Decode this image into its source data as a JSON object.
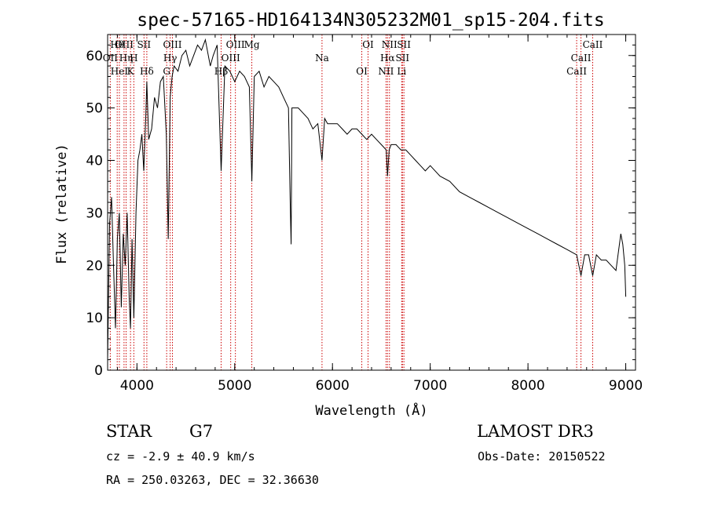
{
  "chart_data": {
    "type": "line",
    "title": "spec-57165-HD164134N305232M01_sp15-204.fits",
    "xlabel": "Wavelength (Å)",
    "ylabel": "Flux (relative)",
    "xlim": [
      3700,
      9100
    ],
    "ylim": [
      0,
      64
    ],
    "xticks": [
      4000,
      5000,
      6000,
      7000,
      8000,
      9000
    ],
    "yticks": [
      0,
      10,
      20,
      30,
      40,
      50,
      60
    ],
    "grid": false,
    "series": [
      {
        "name": "flux",
        "x": [
          3700,
          3720,
          3740,
          3760,
          3780,
          3800,
          3820,
          3840,
          3860,
          3880,
          3900,
          3920,
          3934,
          3950,
          3968,
          3990,
          4010,
          4030,
          4050,
          4070,
          4090,
          4101,
          4120,
          4150,
          4180,
          4210,
          4240,
          4270,
          4300,
          4320,
          4340,
          4360,
          4380,
          4420,
          4460,
          4500,
          4540,
          4580,
          4620,
          4660,
          4700,
          4750,
          4780,
          4820,
          4861,
          4900,
          4950,
          5000,
          5050,
          5100,
          5150,
          5175,
          5200,
          5250,
          5300,
          5350,
          5400,
          5450,
          5500,
          5550,
          5570,
          5577,
          5585,
          5600,
          5650,
          5700,
          5750,
          5800,
          5850,
          5893,
          5920,
          5950,
          6000,
          6050,
          6100,
          6150,
          6200,
          6250,
          6300,
          6350,
          6400,
          6450,
          6500,
          6550,
          6563,
          6580,
          6600,
          6650,
          6700,
          6750,
          6800,
          6850,
          6900,
          6950,
          7000,
          7100,
          7200,
          7300,
          7400,
          7500,
          7600,
          7700,
          7800,
          7900,
          8000,
          8100,
          8200,
          8300,
          8400,
          8498,
          8542,
          8580,
          8620,
          8662,
          8700,
          8750,
          8800,
          8850,
          8900,
          8950,
          8970,
          8990,
          9000
        ],
        "y": [
          2,
          28,
          33,
          20,
          8,
          25,
          30,
          12,
          26,
          20,
          30,
          14,
          8,
          25,
          10,
          30,
          40,
          42,
          45,
          38,
          48,
          55,
          44,
          46,
          52,
          50,
          55,
          56,
          45,
          25,
          52,
          56,
          58,
          57,
          60,
          61,
          58,
          60,
          62,
          61,
          63,
          58,
          60,
          62,
          38,
          58,
          57,
          55,
          57,
          56,
          54,
          36,
          56,
          57,
          54,
          56,
          55,
          54,
          52,
          50,
          30,
          24,
          50,
          50,
          50,
          49,
          48,
          46,
          47,
          40,
          48,
          47,
          47,
          47,
          46,
          45,
          46,
          46,
          45,
          44,
          45,
          44,
          43,
          42,
          37,
          42,
          43,
          43,
          42,
          42,
          41,
          40,
          39,
          38,
          39,
          37,
          36,
          34,
          33,
          32,
          31,
          30,
          29,
          28,
          27,
          26,
          25,
          24,
          23,
          22,
          18,
          22,
          22,
          18,
          22,
          21,
          21,
          20,
          19,
          26,
          24,
          20,
          14
        ]
      }
    ],
    "lines": [
      {
        "label": "Hθ",
        "w": 3798
      },
      {
        "label": "OII",
        "w": 3727
      },
      {
        "label": "HeI",
        "w": 3820
      },
      {
        "label": "OIII",
        "w": 3868
      },
      {
        "label": "Hη",
        "w": 3889
      },
      {
        "label": "K",
        "w": 3934
      },
      {
        "label": "SII",
        "w": 4072
      },
      {
        "label": "H",
        "w": 3968
      },
      {
        "label": "Hδ",
        "w": 4101
      },
      {
        "label": "OIII",
        "w": 4363
      },
      {
        "label": "Hγ",
        "w": 4340
      },
      {
        "label": "G",
        "w": 4304
      },
      {
        "label": "OIII",
        "w": 5007
      },
      {
        "label": "OIII",
        "w": 4959
      },
      {
        "label": "Hβ",
        "w": 4861
      },
      {
        "label": "Mg",
        "w": 5175
      },
      {
        "label": "Na",
        "w": 5893
      },
      {
        "label": "OI",
        "w": 6300
      },
      {
        "label": "OI",
        "w": 6364
      },
      {
        "label": "Hα",
        "w": 6563
      },
      {
        "label": "NII",
        "w": 6548
      },
      {
        "label": "NII",
        "w": 6583
      },
      {
        "label": "SII",
        "w": 6716
      },
      {
        "label": "Li",
        "w": 6708
      },
      {
        "label": "SII",
        "w": 6731
      },
      {
        "label": "CaII",
        "w": 8542
      },
      {
        "label": "CaII",
        "w": 8498
      },
      {
        "label": "CaII",
        "w": 8662
      }
    ]
  },
  "info": {
    "class": "STAR",
    "subclass": "G7",
    "survey": "LAMOST DR3",
    "cz": "cz = -2.9 ± 40.9 km/s",
    "obs_date": "Obs-Date: 20150522",
    "coords": "RA = 250.03263, DEC =  32.36630"
  },
  "colors": {
    "line_marker": "#cc0000",
    "spectrum": "#000000",
    "axis": "#000000"
  }
}
